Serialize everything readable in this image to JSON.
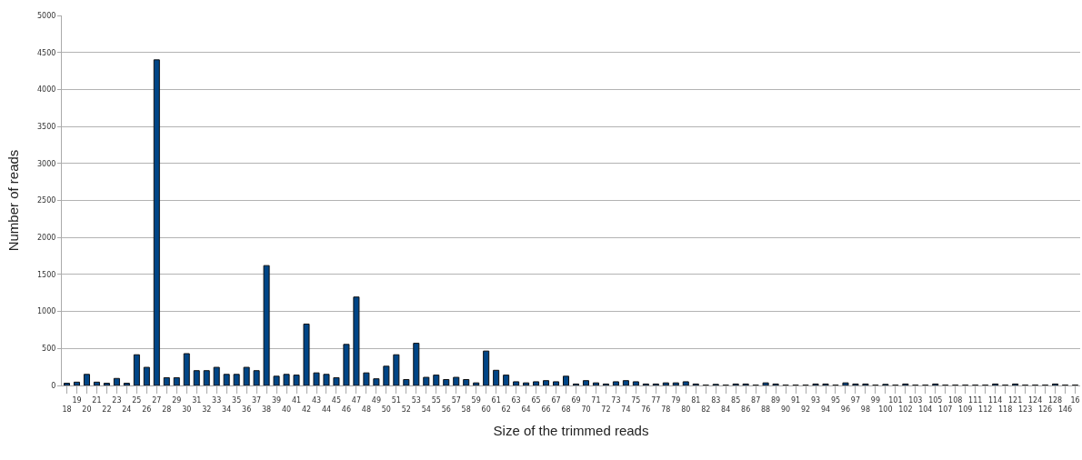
{
  "chart_data": {
    "type": "bar",
    "xlabel": "Size of the trimmed reads",
    "ylabel": "Number of reads",
    "categories": [
      "18",
      "19",
      "20",
      "21",
      "22",
      "23",
      "24",
      "25",
      "26",
      "27",
      "28",
      "29",
      "30",
      "31",
      "32",
      "33",
      "34",
      "35",
      "36",
      "37",
      "38",
      "39",
      "40",
      "41",
      "42",
      "43",
      "44",
      "45",
      "46",
      "47",
      "48",
      "49",
      "50",
      "51",
      "52",
      "53",
      "54",
      "55",
      "56",
      "57",
      "58",
      "59",
      "60",
      "61",
      "62",
      "63",
      "64",
      "65",
      "66",
      "67",
      "68",
      "69",
      "70",
      "71",
      "72",
      "73",
      "74",
      "75",
      "76",
      "77",
      "78",
      "79",
      "80",
      "81",
      "82",
      "83",
      "84",
      "85",
      "86",
      "87",
      "88",
      "89",
      "90",
      "91",
      "92",
      "93",
      "94",
      "95",
      "96",
      "97",
      "98",
      "99",
      "100",
      "101",
      "102",
      "103",
      "104",
      "105",
      "107",
      "108",
      "109",
      "111",
      "112",
      "114",
      "118",
      "121",
      "123",
      "124",
      "126",
      "128",
      "146",
      "16"
    ],
    "values": [
      30,
      45,
      150,
      45,
      30,
      95,
      30,
      415,
      245,
      4400,
      105,
      105,
      430,
      200,
      200,
      245,
      150,
      150,
      245,
      200,
      1620,
      125,
      150,
      140,
      830,
      170,
      150,
      105,
      555,
      1195,
      170,
      90,
      260,
      415,
      80,
      570,
      110,
      140,
      80,
      110,
      80,
      35,
      465,
      205,
      140,
      50,
      35,
      50,
      65,
      50,
      125,
      20,
      65,
      35,
      20,
      50,
      65,
      50,
      20,
      20,
      35,
      35,
      50,
      20,
      5,
      15,
      5,
      20,
      20,
      5,
      35,
      20,
      5,
      5,
      5,
      20,
      20,
      5,
      35,
      20,
      20,
      5,
      15,
      5,
      20,
      5,
      5,
      20,
      5,
      5,
      5,
      5,
      5,
      20,
      5,
      20,
      5,
      5,
      5,
      20,
      5,
      5
    ],
    "color": "#004586",
    "ylim": [
      0,
      5000
    ],
    "yticks": [
      0,
      500,
      1000,
      1500,
      2000,
      2500,
      3000,
      3500,
      4000,
      4500,
      5000
    ],
    "grid": "y",
    "legend": false
  }
}
